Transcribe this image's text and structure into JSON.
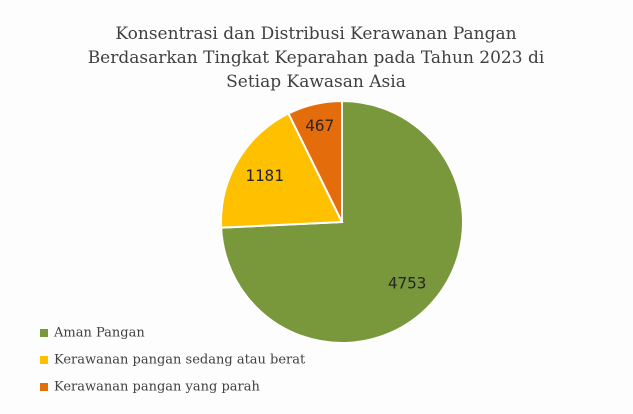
{
  "chart_data": {
    "type": "pie",
    "title": "Konsentrasi dan Distribusi Kerawanan Pangan Berdasarkan Tingkat Keparahan pada Tahun 2023 di Setiap Kawasan Asia",
    "categories": [
      "Aman Pangan",
      "Kerawanan pangan sedang atau berat",
      "Kerawanan pangan yang parah"
    ],
    "values": [
      4753,
      1181,
      467
    ],
    "colors": [
      "#78983b",
      "#ffc000",
      "#e46c0a"
    ],
    "legend": "bottom-left"
  }
}
